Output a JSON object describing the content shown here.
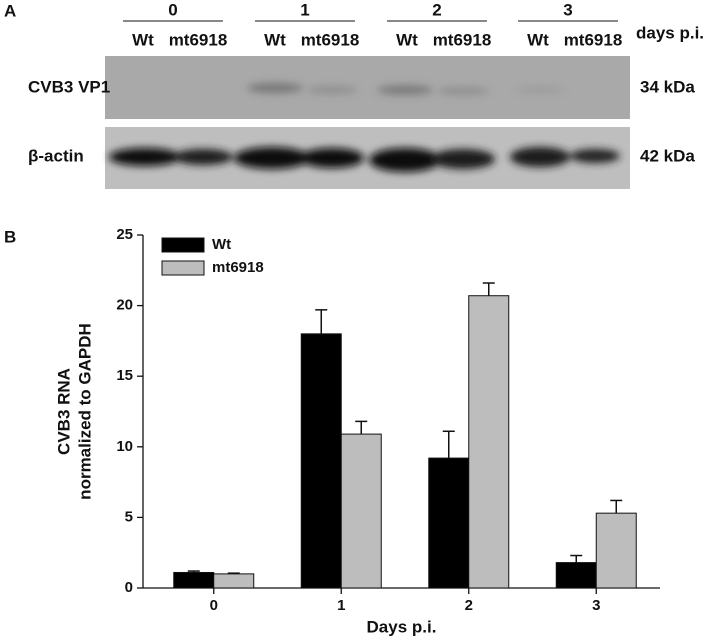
{
  "panel_a": {
    "label": "A",
    "days_label": "days p.i.",
    "groups": [
      {
        "day": "0",
        "lanes": [
          "Wt",
          "mt6918"
        ]
      },
      {
        "day": "1",
        "lanes": [
          "Wt",
          "mt6918"
        ]
      },
      {
        "day": "2",
        "lanes": [
          "Wt",
          "mt6918"
        ]
      },
      {
        "day": "3",
        "lanes": [
          "Wt",
          "mt6918"
        ]
      }
    ],
    "rows": [
      {
        "name": "CVB3 VP1",
        "size": "34 kDa"
      },
      {
        "name": "β-actin",
        "size": "42 kDa"
      }
    ]
  },
  "chart_data": {
    "type": "bar",
    "panel_label": "B",
    "xlabel": "Days p.i.",
    "ylabel": [
      "CVB3 RNA",
      "normalized to GAPDH"
    ],
    "categories": [
      "0",
      "1",
      "2",
      "3"
    ],
    "series": [
      {
        "name": "Wt",
        "color": "#000000",
        "values": [
          1.1,
          18,
          9.2,
          1.8
        ],
        "errors": [
          0.1,
          1.7,
          1.9,
          0.5
        ]
      },
      {
        "name": "mt6918",
        "color": "#bdbdbd",
        "values": [
          1.0,
          10.9,
          20.7,
          5.3
        ],
        "errors": [
          0.05,
          0.9,
          0.9,
          0.9
        ]
      }
    ],
    "ylim": [
      0,
      25
    ],
    "yticks": [
      0,
      5,
      10,
      15,
      20,
      25
    ],
    "legend": "upper left"
  }
}
